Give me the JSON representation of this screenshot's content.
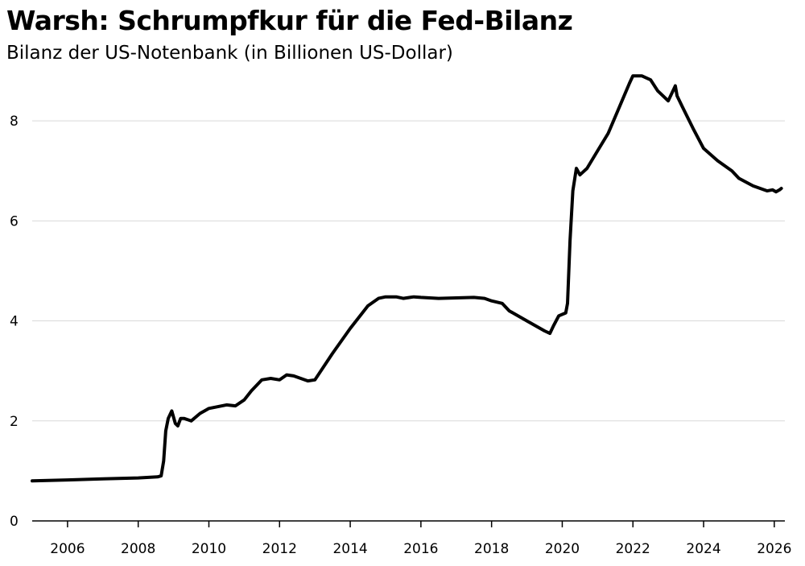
{
  "chart_data": {
    "type": "line",
    "title": "Warsh: Schrumpfkur für die Fed-Bilanz",
    "subtitle": "Bilanz der US-Notenbank (in Billionen US-Dollar)",
    "xlabel": "",
    "ylabel": "",
    "xlim": [
      2005.0,
      2026.3
    ],
    "ylim": [
      0,
      9
    ],
    "x_ticks": [
      2006,
      2008,
      2010,
      2012,
      2014,
      2016,
      2018,
      2020,
      2022,
      2024,
      2026
    ],
    "y_ticks": [
      0,
      2,
      4,
      6,
      8
    ],
    "grid": "horizontal",
    "series": [
      {
        "x": [
          2005.0,
          2006.0,
          2007.0,
          2008.0,
          2008.55,
          2008.65,
          2008.72,
          2008.78,
          2008.85,
          2008.95,
          2009.05,
          2009.12,
          2009.2,
          2009.3,
          2009.5,
          2009.75,
          2010.0,
          2010.5,
          2010.75,
          2011.0,
          2011.2,
          2011.5,
          2011.75,
          2012.0,
          2012.2,
          2012.4,
          2012.6,
          2012.8,
          2013.0,
          2013.5,
          2014.0,
          2014.5,
          2014.8,
          2015.0,
          2015.3,
          2015.5,
          2015.8,
          2016.0,
          2016.5,
          2017.0,
          2017.5,
          2017.8,
          2018.0,
          2018.3,
          2018.5,
          2019.0,
          2019.5,
          2019.65,
          2019.75,
          2019.9,
          2020.1,
          2020.15,
          2020.22,
          2020.3,
          2020.4,
          2020.5,
          2020.7,
          2021.0,
          2021.3,
          2021.6,
          2021.9,
          2022.0,
          2022.25,
          2022.5,
          2022.7,
          2022.85,
          2023.0,
          2023.2,
          2023.25,
          2023.4,
          2023.7,
          2024.0,
          2024.4,
          2024.8,
          2025.0,
          2025.4,
          2025.8,
          2025.95,
          2026.05,
          2026.15,
          2026.2
        ],
        "y": [
          0.8,
          0.82,
          0.84,
          0.86,
          0.88,
          0.9,
          1.2,
          1.8,
          2.05,
          2.2,
          1.95,
          1.9,
          2.05,
          2.05,
          2.0,
          2.15,
          2.25,
          2.32,
          2.3,
          2.42,
          2.6,
          2.82,
          2.85,
          2.82,
          2.92,
          2.9,
          2.85,
          2.8,
          2.82,
          3.35,
          3.85,
          4.3,
          4.45,
          4.48,
          4.48,
          4.45,
          4.48,
          4.47,
          4.45,
          4.46,
          4.47,
          4.45,
          4.4,
          4.35,
          4.2,
          4.0,
          3.8,
          3.75,
          3.9,
          4.1,
          4.16,
          4.35,
          5.6,
          6.6,
          7.05,
          6.92,
          7.05,
          7.4,
          7.75,
          8.25,
          8.75,
          8.9,
          8.9,
          8.82,
          8.6,
          8.5,
          8.4,
          8.7,
          8.5,
          8.28,
          7.85,
          7.45,
          7.2,
          7.0,
          6.85,
          6.7,
          6.6,
          6.62,
          6.58,
          6.62,
          6.65
        ]
      }
    ]
  }
}
